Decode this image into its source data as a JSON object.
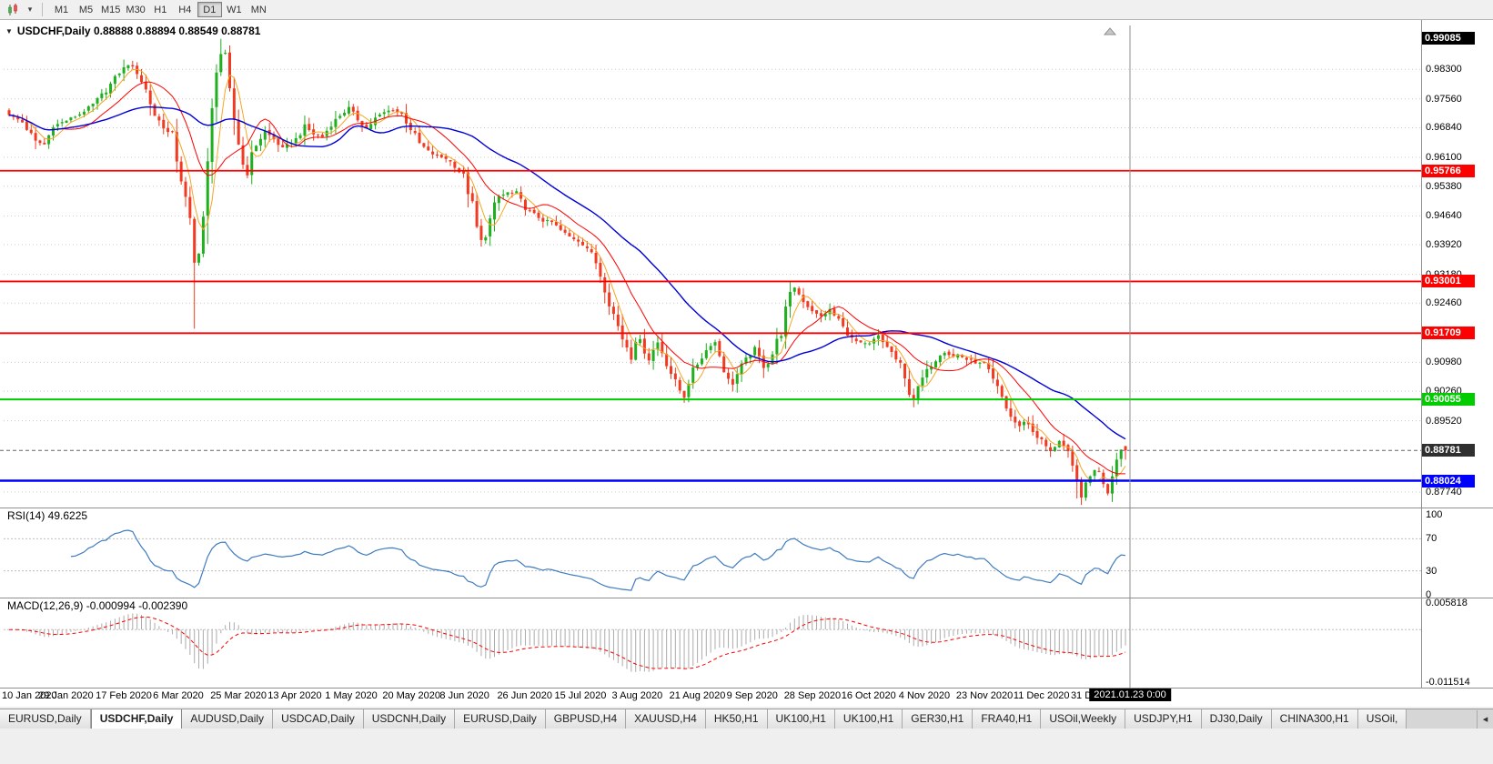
{
  "toolbar": {
    "timeframes": [
      "M1",
      "M5",
      "M15",
      "M30",
      "H1",
      "H4",
      "D1",
      "W1",
      "MN"
    ],
    "active_timeframe": "D1",
    "dropdown_glyph": "▾",
    "icons": [
      {
        "name": "candlestick-chart-icon"
      },
      {
        "name": "chevron-down-icon",
        "glyph": "▾"
      }
    ]
  },
  "chart": {
    "header": "USDCHF,Daily 0.88888 0.88894 0.88549 0.88781",
    "symbol": "USDCHF",
    "timeframe": "Daily",
    "marker_glyph": "▼",
    "ohlc": {
      "open": "0.88888",
      "high": "0.88894",
      "low": "0.88549",
      "close": "0.88781"
    }
  },
  "price_scale": {
    "labels": [
      "0.98300",
      "0.97560",
      "0.96840",
      "0.96100",
      "0.95380",
      "0.94640",
      "0.93920",
      "0.93180",
      "0.92460",
      "0.91720",
      "0.90980",
      "0.90260",
      "0.89520",
      "0.87740"
    ],
    "tags": [
      {
        "value": "0.99085",
        "color": "#000000"
      },
      {
        "value": "0.95766",
        "color": "#FF0000"
      },
      {
        "value": "0.93001",
        "color": "#FF0000"
      },
      {
        "value": "0.91709",
        "color": "#FF0000"
      },
      {
        "value": "0.90055",
        "color": "#00CC00"
      },
      {
        "value": "0.88781",
        "color": "#2F2F2F"
      },
      {
        "value": "0.88024",
        "color": "#0000FF"
      }
    ]
  },
  "rsi": {
    "label": "RSI(14) 49.6225",
    "period": 14,
    "current": "49.6225",
    "levels": [
      "100",
      "70",
      "30",
      "0"
    ],
    "dashed_levels": [
      70,
      30
    ]
  },
  "macd": {
    "label": "MACD(12,26,9) -0.000994 -0.002390",
    "params": "12,26,9",
    "main": "-0.000994",
    "signal": "-0.002390",
    "scale_max": "0.005818",
    "scale_min": "-0.011514"
  },
  "time_axis": {
    "labels": [
      "10 Jan 2020",
      "29 Jan 2020",
      "17 Feb 2020",
      "6 Mar 2020",
      "25 Mar 2020",
      "13 Apr 2020",
      "1 May 2020",
      "20 May 2020",
      "8 Jun 2020",
      "26 Jun 2020",
      "15 Jul 2020",
      "3 Aug 2020",
      "21 Aug 2020",
      "9 Sep 2020",
      "28 Sep 2020",
      "16 Oct 2020",
      "4 Nov 2020",
      "23 Nov 2020",
      "11 Dec 2020",
      "31 Dec 2020"
    ],
    "crosshair": "2021.01.23 0:00"
  },
  "tabs": {
    "items": [
      "EURUSD,Daily",
      "USDCHF,Daily",
      "AUDUSD,Daily",
      "USDCAD,Daily",
      "USDCNH,Daily",
      "EURUSD,Daily",
      "GBPUSD,H4",
      "XAUUSD,H4",
      "HK50,H1",
      "UK100,H1",
      "UK100,H1",
      "GER30,H1",
      "FRA40,H1",
      "USOil,Weekly",
      "USDJPY,H1",
      "DJ30,Daily",
      "CHINA300,H1",
      "USOil,"
    ],
    "active_index": 1,
    "scroll_glyph": "◂"
  },
  "chart_data": {
    "type": "candlestick",
    "symbol": "USDCHF",
    "timeframe": "Daily",
    "x_range": [
      "10 Jan 2020",
      "23 Jan 2021"
    ],
    "y_range": [
      0.874,
      0.9935
    ],
    "bars": 254,
    "last_bar": {
      "open": 0.88888,
      "high": 0.88894,
      "low": 0.88549,
      "close": 0.88781
    },
    "close_anchors": [
      [
        0,
        0.9718
      ],
      [
        3,
        0.9698
      ],
      [
        6,
        0.965
      ],
      [
        8,
        0.9642
      ],
      [
        10,
        0.9688
      ],
      [
        13,
        0.9702
      ],
      [
        16,
        0.9718
      ],
      [
        19,
        0.9742
      ],
      [
        22,
        0.9778
      ],
      [
        25,
        0.9822
      ],
      [
        27,
        0.9843
      ],
      [
        29,
        0.9825
      ],
      [
        31,
        0.9778
      ],
      [
        33,
        0.9715
      ],
      [
        35,
        0.9688
      ],
      [
        37,
        0.9655
      ],
      [
        39,
        0.9565
      ],
      [
        40,
        0.9495
      ],
      [
        41,
        0.943
      ],
      [
        42,
        0.934
      ],
      [
        43,
        0.9395
      ],
      [
        44,
        0.9462
      ],
      [
        45,
        0.956
      ],
      [
        46,
        0.9705
      ],
      [
        47,
        0.9835
      ],
      [
        48,
        0.987
      ],
      [
        49,
        0.9838
      ],
      [
        50,
        0.9762
      ],
      [
        51,
        0.9705
      ],
      [
        52,
        0.965
      ],
      [
        53,
        0.9592
      ],
      [
        54,
        0.9578
      ],
      [
        55,
        0.9612
      ],
      [
        56,
        0.9642
      ],
      [
        58,
        0.9675
      ],
      [
        60,
        0.9655
      ],
      [
        62,
        0.9632
      ],
      [
        65,
        0.9655
      ],
      [
        67,
        0.9688
      ],
      [
        69,
        0.9668
      ],
      [
        71,
        0.9662
      ],
      [
        73,
        0.9692
      ],
      [
        75,
        0.9715
      ],
      [
        77,
        0.9732
      ],
      [
        79,
        0.9705
      ],
      [
        81,
        0.9682
      ],
      [
        83,
        0.9708
      ],
      [
        85,
        0.9722
      ],
      [
        87,
        0.973
      ],
      [
        89,
        0.9718
      ],
      [
        91,
        0.9682
      ],
      [
        93,
        0.9645
      ],
      [
        95,
        0.9625
      ],
      [
        97,
        0.9612
      ],
      [
        99,
        0.9608
      ],
      [
        101,
        0.959
      ],
      [
        103,
        0.956
      ],
      [
        104,
        0.9532
      ],
      [
        105,
        0.9482
      ],
      [
        106,
        0.9432
      ],
      [
        107,
        0.9398
      ],
      [
        108,
        0.9422
      ],
      [
        109,
        0.9452
      ],
      [
        110,
        0.9488
      ],
      [
        111,
        0.9512
      ],
      [
        113,
        0.9522
      ],
      [
        115,
        0.9518
      ],
      [
        117,
        0.9482
      ],
      [
        119,
        0.9468
      ],
      [
        121,
        0.9452
      ],
      [
        123,
        0.9448
      ],
      [
        125,
        0.9428
      ],
      [
        127,
        0.9412
      ],
      [
        129,
        0.9402
      ],
      [
        131,
        0.9385
      ],
      [
        133,
        0.9348
      ],
      [
        135,
        0.9288
      ],
      [
        137,
        0.9218
      ],
      [
        139,
        0.9158
      ],
      [
        141,
        0.9118
      ],
      [
        142,
        0.9152
      ],
      [
        143,
        0.9148
      ],
      [
        144,
        0.9128
      ],
      [
        145,
        0.9108
      ],
      [
        146,
        0.9128
      ],
      [
        147,
        0.9148
      ],
      [
        148,
        0.9125
      ],
      [
        149,
        0.9098
      ],
      [
        150,
        0.9072
      ],
      [
        151,
        0.9048
      ],
      [
        152,
        0.9028
      ],
      [
        153,
        0.9018
      ],
      [
        154,
        0.9052
      ],
      [
        155,
        0.9078
      ],
      [
        156,
        0.9095
      ],
      [
        157,
        0.9112
      ],
      [
        158,
        0.9128
      ],
      [
        159,
        0.9142
      ],
      [
        160,
        0.9148
      ],
      [
        161,
        0.9118
      ],
      [
        162,
        0.9082
      ],
      [
        163,
        0.9055
      ],
      [
        164,
        0.9048
      ],
      [
        165,
        0.9068
      ],
      [
        166,
        0.909
      ],
      [
        167,
        0.9105
      ],
      [
        168,
        0.9118
      ],
      [
        169,
        0.9128
      ],
      [
        170,
        0.9108
      ],
      [
        171,
        0.9088
      ],
      [
        172,
        0.91
      ],
      [
        173,
        0.912
      ],
      [
        174,
        0.9148
      ],
      [
        175,
        0.918
      ],
      [
        176,
        0.9225
      ],
      [
        177,
        0.9265
      ],
      [
        178,
        0.9288
      ],
      [
        179,
        0.9268
      ],
      [
        180,
        0.9252
      ],
      [
        181,
        0.9238
      ],
      [
        182,
        0.9228
      ],
      [
        183,
        0.9218
      ],
      [
        184,
        0.9212
      ],
      [
        185,
        0.9222
      ],
      [
        186,
        0.9228
      ],
      [
        187,
        0.9215
      ],
      [
        188,
        0.9205
      ],
      [
        189,
        0.9185
      ],
      [
        190,
        0.917
      ],
      [
        191,
        0.9158
      ],
      [
        192,
        0.915
      ],
      [
        193,
        0.9145
      ],
      [
        195,
        0.9142
      ],
      [
        196,
        0.9155
      ],
      [
        197,
        0.9162
      ],
      [
        198,
        0.9148
      ],
      [
        199,
        0.9138
      ],
      [
        200,
        0.9122
      ],
      [
        201,
        0.9105
      ],
      [
        202,
        0.9085
      ],
      [
        203,
        0.9052
      ],
      [
        204,
        0.9022
      ],
      [
        205,
        0.9008
      ],
      [
        206,
        0.9028
      ],
      [
        207,
        0.9058
      ],
      [
        208,
        0.9075
      ],
      [
        209,
        0.9092
      ],
      [
        210,
        0.9105
      ],
      [
        211,
        0.9118
      ],
      [
        212,
        0.9125
      ],
      [
        213,
        0.9118
      ],
      [
        214,
        0.9112
      ],
      [
        215,
        0.9118
      ],
      [
        217,
        0.9105
      ],
      [
        219,
        0.9098
      ],
      [
        221,
        0.9092
      ],
      [
        223,
        0.9052
      ],
      [
        224,
        0.9032
      ],
      [
        225,
        0.901
      ],
      [
        226,
        0.8985
      ],
      [
        227,
        0.8962
      ],
      [
        228,
        0.8948
      ],
      [
        229,
        0.8935
      ],
      [
        230,
        0.8952
      ],
      [
        231,
        0.8942
      ],
      [
        232,
        0.8925
      ],
      [
        233,
        0.8912
      ],
      [
        234,
        0.8902
      ],
      [
        235,
        0.8888
      ],
      [
        236,
        0.8872
      ],
      [
        237,
        0.889
      ],
      [
        238,
        0.8905
      ],
      [
        239,
        0.8888
      ],
      [
        240,
        0.8862
      ],
      [
        241,
        0.8828
      ],
      [
        242,
        0.8795
      ],
      [
        243,
        0.8768
      ],
      [
        244,
        0.8788
      ],
      [
        245,
        0.8812
      ],
      [
        246,
        0.8832
      ],
      [
        247,
        0.882
      ],
      [
        248,
        0.8798
      ],
      [
        249,
        0.8782
      ],
      [
        250,
        0.8822
      ],
      [
        251,
        0.8862
      ],
      [
        252,
        0.888
      ],
      [
        253,
        0.88781
      ]
    ],
    "wick_overrides": {
      "42": {
        "low": 0.9182
      },
      "48": {
        "high": 0.9906
      },
      "153": {
        "low": 0.8997
      },
      "205": {
        "low": 0.8986
      },
      "242": {
        "low": 0.8758
      },
      "243": {
        "low": 0.8742
      }
    },
    "horizontal_lines": [
      {
        "value": 0.95766,
        "color": "#FF0000",
        "width": 1.8,
        "style": "solid"
      },
      {
        "value": 0.93001,
        "color": "#FF0000",
        "width": 1.8,
        "style": "solid"
      },
      {
        "value": 0.91709,
        "color": "#FF0000",
        "width": 1.8,
        "style": "solid"
      },
      {
        "value": 0.90055,
        "color": "#00CC00",
        "width": 2,
        "style": "solid"
      },
      {
        "value": 0.88024,
        "color": "#0000FF",
        "width": 2.5,
        "style": "solid"
      },
      {
        "value": 0.88781,
        "color": "#666666",
        "width": 1,
        "style": "dash"
      }
    ],
    "moving_averages": [
      {
        "period": 5,
        "color": "#F5A623"
      },
      {
        "period": 13,
        "color": "#FF0000"
      },
      {
        "period": 34,
        "color": "#0000D8"
      }
    ],
    "colors": {
      "up": "#1FAF1F",
      "down": "#F03A21",
      "grid": "#C9C9C9",
      "rsi_line": "#3E7BBF",
      "macd_hist": "#ABABAB",
      "macd_signal": "#FF0000",
      "crosshair": "#8C8C8C"
    },
    "indicators": [
      {
        "name": "RSI",
        "period": 14,
        "value": 49.6225
      },
      {
        "name": "MACD",
        "fast": 12,
        "slow": 26,
        "signal": 9,
        "values": [
          -0.000994,
          -0.00239
        ]
      }
    ]
  }
}
